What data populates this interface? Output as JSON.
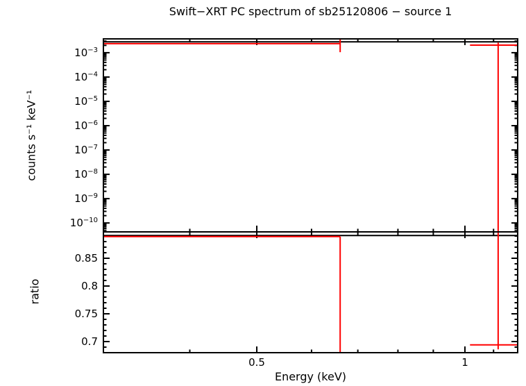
{
  "figure": {
    "title": "Swift−XRT PC spectrum of sb25120806 − source 1",
    "xlabel": "Energy (keV)",
    "top_panel_ylabel": "counts s⁻¹ keV⁻¹",
    "bottom_panel_ylabel": "ratio",
    "colors": {
      "data": "#ff0000",
      "model": "#000000",
      "background": "#ffffff"
    }
  },
  "chart_data": [
    {
      "type": "line",
      "name": "spectrum-panel",
      "xscale": "log",
      "yscale": "log",
      "xlabel": "Energy (keV)",
      "ylabel": "counts s⁻¹ keV⁻¹",
      "xlim": [
        0.3,
        1.192
      ],
      "ylim": [
        4.3e-11,
        0.0037
      ],
      "x_major_ticks": [
        0.5,
        1
      ],
      "x_major_tick_labels": [
        "0.5",
        "1"
      ],
      "x_minor_ticks": [
        0.3,
        0.4,
        0.6,
        0.7,
        0.8,
        0.9,
        1.1
      ],
      "y_major_tick_exponents": [
        -3,
        -4,
        -5,
        -6,
        -7,
        -8,
        -9,
        -10
      ],
      "grid": false,
      "legend": "none",
      "series": [
        {
          "name": "model",
          "color": "#000000",
          "style": "hline",
          "y": 0.0028,
          "x_lo": 0.3,
          "x_hi": 1.192
        },
        {
          "name": "data",
          "color": "#ff0000",
          "style": "bins",
          "bins": [
            {
              "x_lo": 0.3,
              "x_hi": 0.66,
              "y": 0.00235,
              "err_x": 0.66,
              "err_lo": 0.00105,
              "err_hi": 0.004
            },
            {
              "x_lo": 1.017,
              "x_hi": 1.192,
              "y": 0.00205,
              "err_x": 1.117,
              "err_lo": 1e-12,
              "err_hi": 0.0026
            }
          ]
        }
      ]
    },
    {
      "type": "line",
      "name": "ratio-panel",
      "xscale": "log",
      "yscale": "linear",
      "xlabel": "Energy (keV)",
      "ylabel": "ratio",
      "xlim": [
        0.3,
        1.192
      ],
      "ylim": [
        0.68,
        0.8975
      ],
      "x_major_ticks": [
        0.5,
        1
      ],
      "x_major_tick_labels": [
        "0.5",
        "1"
      ],
      "x_minor_ticks": [
        0.3,
        0.4,
        0.6,
        0.7,
        0.8,
        0.9,
        1.1
      ],
      "y_major_ticks": [
        0.85,
        0.8,
        0.75,
        0.7
      ],
      "y_major_tick_labels": [
        "0.85",
        "0.8",
        "0.75",
        "0.7"
      ],
      "y_minor_step": 0.01,
      "grid": false,
      "legend": "none",
      "series": [
        {
          "name": "model",
          "color": "#000000",
          "style": "hline",
          "y": 0.891,
          "x_lo": 0.3,
          "x_hi": 1.192
        },
        {
          "name": "data",
          "color": "#ff0000",
          "style": "bins",
          "bins": [
            {
              "x_lo": 0.3,
              "x_hi": 0.66,
              "y": 0.889,
              "err_x": 0.66,
              "err_lo": 0.6,
              "err_hi": 0.889
            },
            {
              "x_lo": 1.017,
              "x_hi": 1.192,
              "y": 0.694,
              "err_x": 1.117,
              "err_lo": 0.686,
              "err_hi": 1.0
            }
          ]
        }
      ]
    }
  ]
}
